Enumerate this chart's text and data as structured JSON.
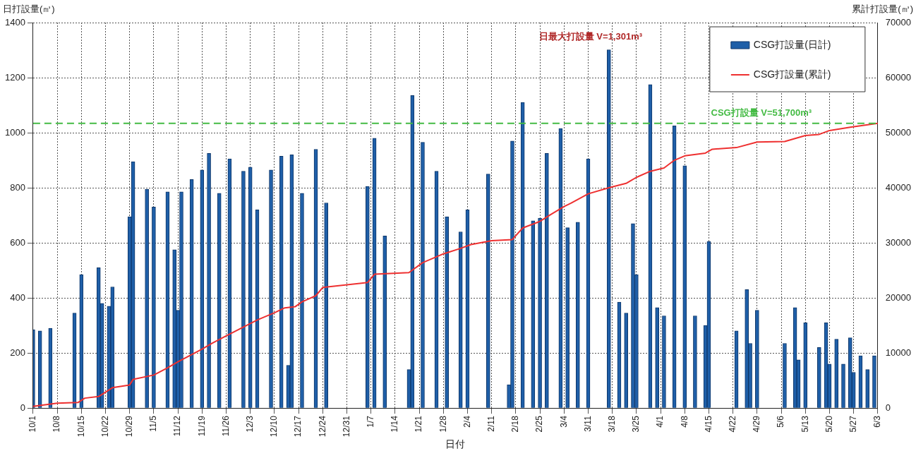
{
  "chart_data": {
    "type": "bar",
    "xlabel": "日付",
    "ylabel": "日打設量(㎥)",
    "y2label": "累計打設量(㎥)",
    "categories": [
      "10/1",
      null,
      null,
      null,
      null,
      null,
      null,
      "10/8",
      null,
      null,
      null,
      null,
      null,
      null,
      "10/15",
      null,
      null,
      null,
      null,
      null,
      null,
      "10/22",
      null,
      null,
      null,
      null,
      null,
      null,
      "10/29",
      null,
      null,
      null,
      null,
      null,
      null,
      "11/5",
      null,
      null,
      null,
      null,
      null,
      null,
      "11/12",
      null,
      null,
      null,
      null,
      null,
      null,
      "11/19",
      null,
      null,
      null,
      null,
      null,
      null,
      "11/26",
      null,
      null,
      null,
      null,
      null,
      null,
      "12/3",
      null,
      null,
      null,
      null,
      null,
      null,
      "12/10",
      null,
      null,
      null,
      null,
      null,
      null,
      "12/17",
      null,
      null,
      null,
      null,
      null,
      null,
      "12/24",
      null,
      null,
      null,
      null,
      null,
      null,
      "12/31",
      null,
      null,
      null,
      null,
      null,
      null,
      "1/7",
      null,
      null,
      null,
      null,
      null,
      null,
      "1/14",
      null,
      null,
      null,
      null,
      null,
      null,
      "1/21",
      null,
      null,
      null,
      null,
      null,
      null,
      "1/28",
      null,
      null,
      null,
      null,
      null,
      null,
      "2/4",
      null,
      null,
      null,
      null,
      null,
      null,
      "2/11",
      null,
      null,
      null,
      null,
      null,
      null,
      "2/18",
      null,
      null,
      null,
      null,
      null,
      null,
      "2/25",
      null,
      null,
      null,
      null,
      null,
      null,
      "3/4",
      null,
      null,
      null,
      null,
      null,
      null,
      "3/11",
      null,
      null,
      null,
      null,
      null,
      null,
      "3/18",
      null,
      null,
      null,
      null,
      null,
      null,
      "3/25",
      null,
      null,
      null,
      null,
      null,
      null,
      "4/1",
      null,
      null,
      null,
      null,
      null,
      null,
      "4/8",
      null,
      null,
      null,
      null,
      null,
      null,
      "4/15",
      null,
      null,
      null,
      null,
      null,
      null,
      "4/22",
      null,
      null,
      null,
      null,
      null,
      null,
      "4/29",
      null,
      null,
      null,
      null,
      null,
      null,
      "5/6",
      null,
      null,
      null,
      null,
      null,
      null,
      "5/13",
      null,
      null,
      null,
      null,
      null,
      null,
      "5/20",
      null,
      null,
      null,
      null,
      null,
      null,
      "5/27",
      null,
      null,
      null,
      null,
      null,
      null,
      "6/3"
    ],
    "ylim": [
      0,
      1400
    ],
    "yticks": [
      0,
      200,
      400,
      600,
      800,
      1000,
      1200,
      1400
    ],
    "y2lim": [
      0,
      70000
    ],
    "y2ticks": [
      0,
      10000,
      20000,
      30000,
      40000,
      50000,
      60000,
      70000
    ],
    "grid": true,
    "legend": "top right",
    "series": [
      {
        "name": "CSG打設量(日計)",
        "color": "#1f5fa8",
        "values": [
          285,
          null,
          280,
          null,
          null,
          290,
          null,
          null,
          null,
          null,
          null,
          null,
          345,
          null,
          485,
          null,
          null,
          null,
          null,
          510,
          380,
          null,
          370,
          440,
          null,
          null,
          null,
          null,
          695,
          895,
          null,
          null,
          null,
          795,
          null,
          730,
          null,
          null,
          null,
          785,
          null,
          575,
          355,
          785,
          null,
          null,
          830,
          null,
          null,
          865,
          null,
          925,
          null,
          null,
          780,
          null,
          null,
          905,
          null,
          null,
          null,
          860,
          null,
          875,
          null,
          720,
          null,
          null,
          null,
          865,
          null,
          null,
          915,
          null,
          155,
          920,
          null,
          null,
          780,
          null,
          null,
          null,
          940,
          null,
          null,
          745,
          null,
          null,
          null,
          null,
          null,
          null,
          null,
          null,
          null,
          null,
          null,
          805,
          null,
          980,
          null,
          null,
          625,
          null,
          null,
          null,
          null,
          null,
          null,
          140,
          1135,
          null,
          null,
          965,
          null,
          null,
          null,
          860,
          null,
          null,
          695,
          null,
          null,
          null,
          640,
          null,
          720,
          null,
          null,
          null,
          null,
          null,
          850,
          null,
          null,
          null,
          null,
          null,
          85,
          970,
          null,
          null,
          1110,
          null,
          null,
          680,
          null,
          690,
          null,
          925,
          null,
          null,
          null,
          1015,
          null,
          655,
          null,
          null,
          675,
          null,
          null,
          905,
          null,
          null,
          null,
          null,
          null,
          1301,
          null,
          null,
          385,
          null,
          345,
          null,
          670,
          485,
          null,
          null,
          null,
          1175,
          null,
          365,
          null,
          335,
          null,
          null,
          1025,
          null,
          null,
          880,
          null,
          null,
          335,
          null,
          null,
          300,
          605,
          null,
          null,
          null,
          null,
          null,
          null,
          null,
          280,
          null,
          null,
          430,
          235,
          null,
          355,
          null,
          null,
          null,
          null,
          null,
          null,
          null,
          235,
          null,
          null,
          365,
          175,
          null,
          310,
          null,
          null,
          null,
          220,
          null,
          310,
          160,
          null,
          250,
          null,
          160,
          null,
          255,
          130,
          null,
          190,
          null,
          140,
          null,
          190,
          null
        ]
      },
      {
        "name": "CSG打設量(累計)",
        "type": "line",
        "axis": "y2",
        "color": "#ee3030",
        "values": [
          300,
          null,
          null,
          null,
          null,
          null,
          null,
          900,
          null,
          null,
          null,
          null,
          null,
          1000,
          null,
          1800,
          null,
          null,
          null,
          2100,
          null,
          null,
          null,
          3700,
          null,
          null,
          null,
          null,
          4200,
          5200,
          null,
          null,
          null,
          null,
          null,
          6000,
          null,
          null,
          null,
          7300,
          null,
          null,
          8400,
          null,
          null,
          null,
          null,
          null,
          null,
          10700,
          null,
          null,
          11800,
          null,
          null,
          null,
          13100,
          null,
          null,
          null,
          null,
          14700,
          null,
          null,
          null,
          16000,
          null,
          null,
          null,
          null,
          17300,
          null,
          null,
          18200,
          null,
          null,
          18400,
          null,
          19300,
          null,
          null,
          null,
          20400,
          null,
          21900,
          null,
          null,
          null,
          null,
          null,
          null,
          null,
          null,
          null,
          null,
          null,
          null,
          22800,
          null,
          24300,
          null,
          null,
          null,
          null,
          null,
          null,
          null,
          null,
          null,
          24600,
          null,
          null,
          null,
          26400,
          null,
          null,
          null,
          null,
          null,
          28000,
          null,
          null,
          null,
          null,
          29000,
          null,
          null,
          29700,
          null,
          null,
          null,
          null,
          null,
          30400,
          null,
          null,
          null,
          null,
          null,
          30600,
          null,
          null,
          32700,
          null,
          null,
          null,
          null,
          33900,
          null,
          null,
          35100,
          null,
          null,
          null,
          36600,
          null,
          37200,
          null,
          null,
          null,
          null,
          38900,
          null,
          null,
          null,
          null,
          null,
          40000,
          null,
          null,
          40500,
          null,
          40800,
          null,
          null,
          41900,
          null,
          null,
          null,
          43000,
          null,
          null,
          null,
          43600,
          null,
          null,
          45000,
          null,
          null,
          45800,
          null,
          null,
          null,
          null,
          null,
          46300,
          null,
          47000,
          null,
          null,
          null,
          null,
          null,
          null,
          47300,
          null,
          null,
          null,
          null,
          null,
          48300,
          null,
          null,
          null,
          null,
          null,
          null,
          null,
          48400,
          null,
          null,
          null,
          null,
          null,
          49500,
          null,
          null,
          null,
          49700,
          null,
          null,
          50400,
          null,
          null,
          null,
          null,
          null,
          51000,
          null,
          null,
          null,
          null,
          null,
          null,
          null,
          51700
        ]
      }
    ],
    "ref_lines": [
      {
        "axis": "y2",
        "value": 51700,
        "label": "CSG打設量 V=51,700m³",
        "color": "#44bb44",
        "line_style": "dashed"
      }
    ],
    "annotations": [
      "日最大打設量 V=1,301m³"
    ]
  }
}
